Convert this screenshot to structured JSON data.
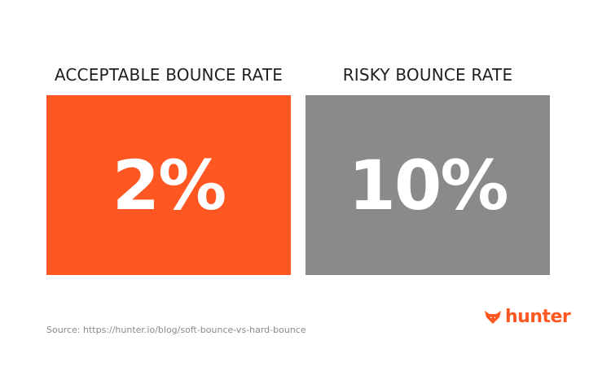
{
  "panels": [
    {
      "title": "ACCEPTABLE BOUNCE RATE",
      "value": "2%",
      "color": "#ff5722"
    },
    {
      "title": "RISKY BOUNCE RATE",
      "value": "10%",
      "color": "#8a8a8a"
    }
  ],
  "source": "Source: https://hunter.io/blog/soft-bounce-vs-hard-bounce",
  "logo": {
    "text": "hunter",
    "icon": "fox-icon",
    "color": "#ff5722"
  }
}
